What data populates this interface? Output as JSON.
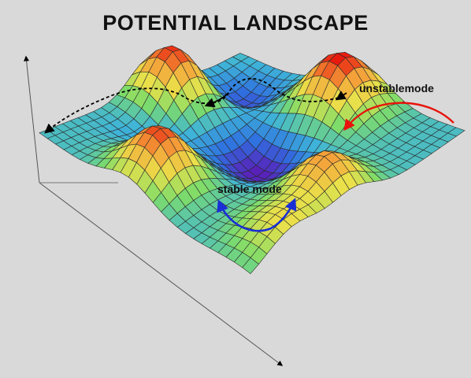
{
  "title": "POTENTIAL LANDSCAPE",
  "labels": {
    "unstable": "unstablemode",
    "stable": "stable mode"
  },
  "colors": {
    "background": "#d9d9d9",
    "unstable_arrow": "#e8140c",
    "stable_arrow": "#1a2fd6",
    "path_dashed": "#000000",
    "colormap": [
      "#5a1fb8",
      "#2f6fe0",
      "#3fb4d8",
      "#7ddc6a",
      "#eae04a",
      "#f4a23a",
      "#e8140c"
    ]
  }
}
